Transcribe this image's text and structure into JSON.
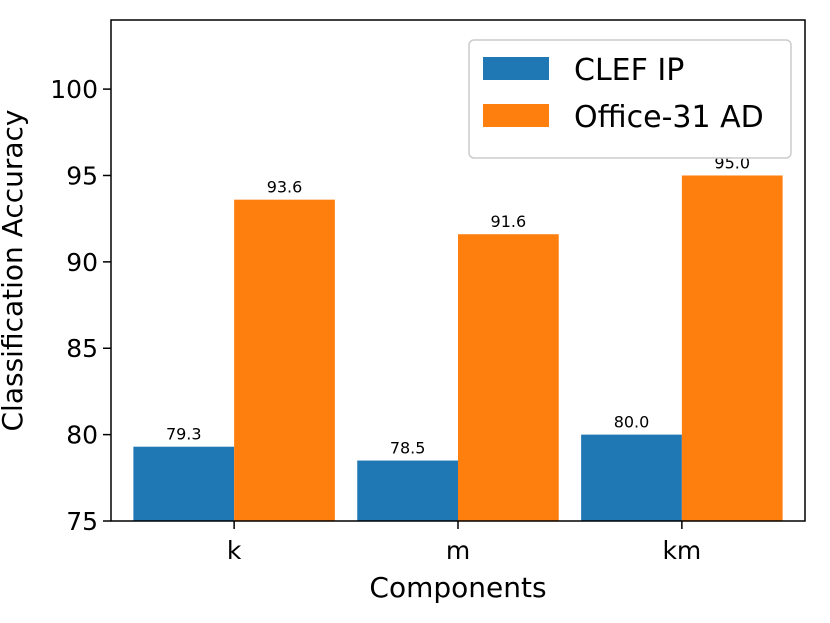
{
  "chart_data": {
    "type": "bar",
    "xlabel": "Components",
    "ylabel": "Classification Accuracy",
    "categories": [
      "k",
      "m",
      "km"
    ],
    "series": [
      {
        "name": "CLEF IP",
        "values": [
          79.3,
          78.5,
          80.0
        ],
        "value_labels": [
          "79.3",
          "78.5",
          "80.0"
        ],
        "color": "#1f77b4"
      },
      {
        "name": "Office-31 AD",
        "values": [
          93.6,
          91.6,
          95.0
        ],
        "value_labels": [
          "93.6",
          "91.6",
          "95.0"
        ],
        "color": "#ff7f0e"
      }
    ],
    "ylim": [
      75,
      104
    ],
    "yticks": [
      75,
      80,
      85,
      90,
      95,
      100
    ],
    "ytick_labels": [
      "75",
      "80",
      "85",
      "90",
      "95",
      "100"
    ],
    "grid": false,
    "legend_position": "top-right"
  }
}
